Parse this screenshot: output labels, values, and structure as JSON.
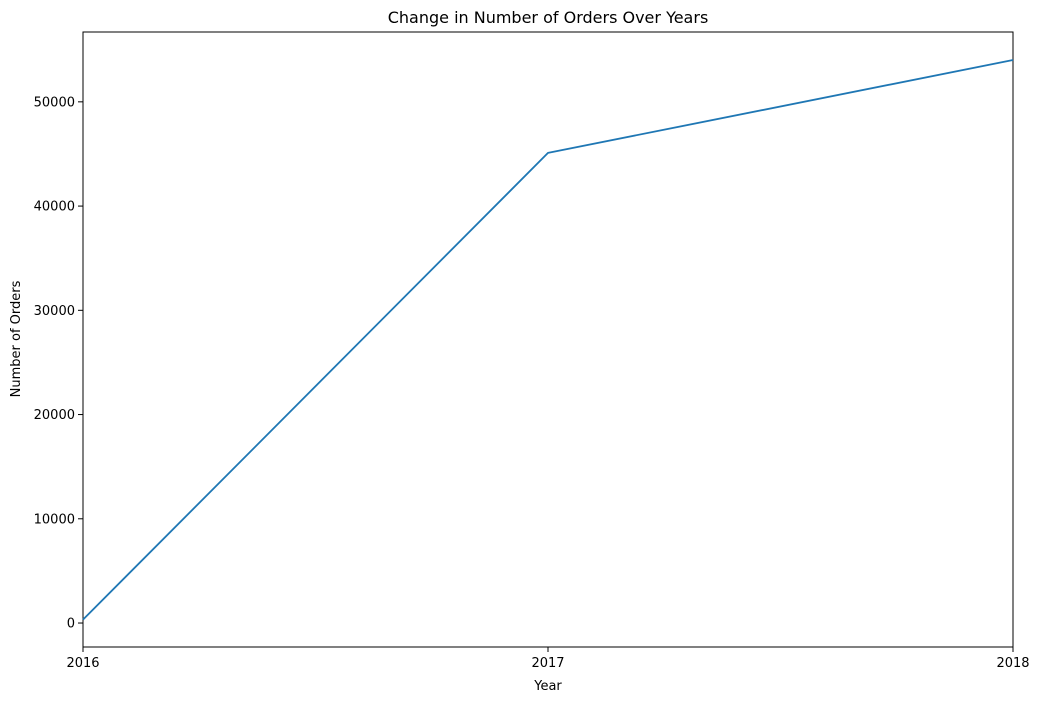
{
  "chart_data": {
    "type": "line",
    "title": "Change in Number of Orders Over Years",
    "xlabel": "Year",
    "ylabel": "Number of Orders",
    "x": [
      2016,
      2017,
      2018
    ],
    "x_tick_labels": [
      "2016",
      "2017",
      "2018"
    ],
    "xlim": [
      2016,
      2018
    ],
    "y_ticks": [
      0,
      10000,
      20000,
      30000,
      40000,
      50000
    ],
    "y_tick_labels": [
      "0",
      "10000",
      "20000",
      "30000",
      "40000",
      "50000"
    ],
    "ylim": [
      -2300,
      56700
    ],
    "grid": false,
    "series": [
      {
        "values": [
          329,
          45101,
          54011
        ],
        "color": "#1f77b4"
      }
    ]
  }
}
